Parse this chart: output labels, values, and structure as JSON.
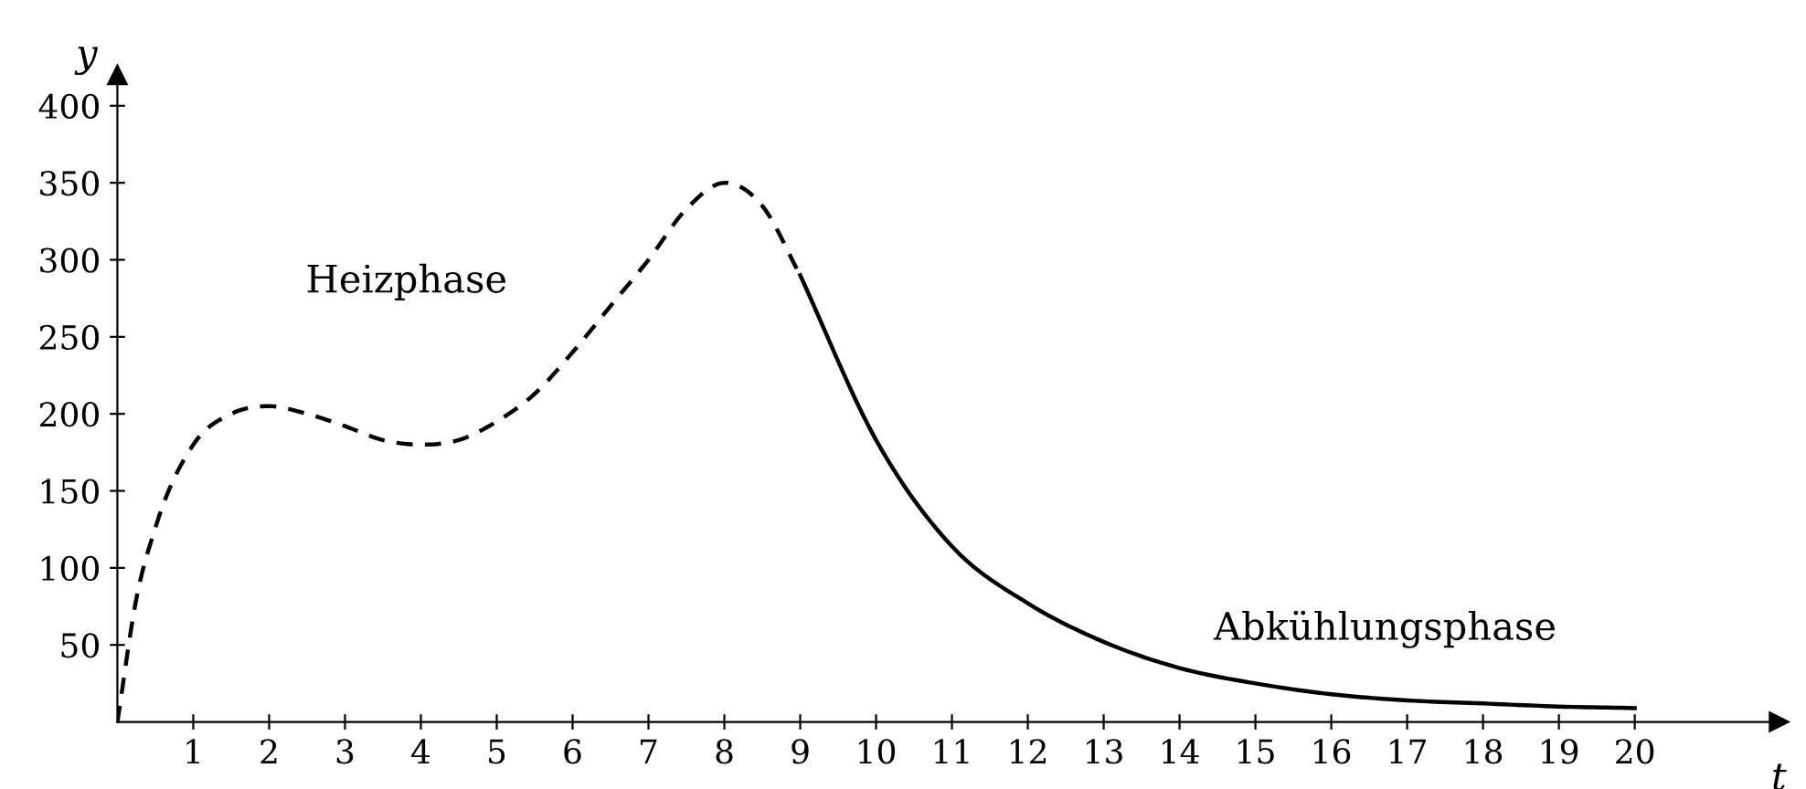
{
  "chart_data": {
    "type": "line",
    "xlabel": "t",
    "ylabel": "y",
    "xlim": [
      0,
      21.9
    ],
    "ylim": [
      0,
      420
    ],
    "xticks": [
      1,
      2,
      3,
      4,
      5,
      6,
      7,
      8,
      9,
      10,
      11,
      12,
      13,
      14,
      15,
      16,
      17,
      18,
      19,
      20
    ],
    "yticks": [
      50,
      100,
      150,
      200,
      250,
      300,
      350,
      400
    ],
    "grid": false,
    "legend": false,
    "marker": "none",
    "series": [
      {
        "color": "#000000",
        "line_style": "dashed",
        "x": [
          0,
          0.25,
          0.5,
          1,
          1.5,
          2,
          2.5,
          3,
          3.5,
          4,
          4.5,
          5,
          5.5,
          6,
          6.5,
          7,
          7.5,
          8,
          8.5,
          9
        ],
        "values": [
          0,
          80,
          126,
          180,
          200,
          205,
          200,
          192,
          183,
          180,
          183,
          195,
          213,
          240,
          270,
          300,
          333,
          350,
          335,
          290
        ]
      },
      {
        "color": "#000000",
        "line_style": "solid",
        "x": [
          9,
          10,
          11,
          12,
          13,
          14,
          15,
          16,
          17,
          18,
          19,
          20
        ],
        "values": [
          290,
          183,
          114,
          77,
          52,
          35,
          25,
          18,
          14,
          12,
          10,
          9
        ]
      }
    ],
    "annotations": [
      "Heizphase",
      "Abkühlungsphase"
    ]
  }
}
